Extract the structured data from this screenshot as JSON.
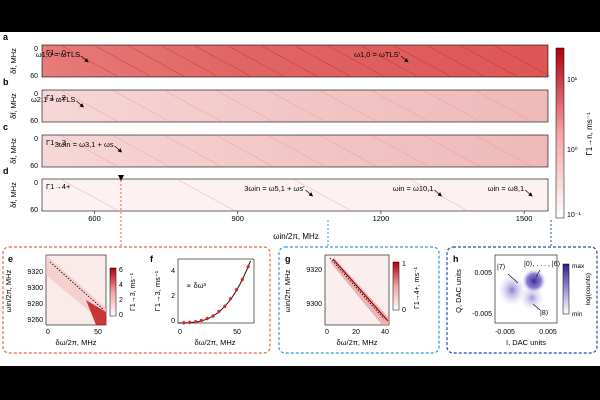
{
  "colors": {
    "heat_low": "#ffffff",
    "heat_high": "#b0000f",
    "accent_red": "#d62728",
    "box_orange": "#e8683a",
    "box_blue": "#2a9fd6",
    "box_navy": "#1f4bb0",
    "iq_dark": "#3b2a9a",
    "iq_light": "#d8d2f0"
  },
  "rows": [
    {
      "panel": "a",
      "gamma": "Γ1→0",
      "ylabel": "δf, MHz",
      "ytick_top": "0",
      "ytick_bottom": "60",
      "annotations": [
        {
          "label": "ω1,0 = ωTLS",
          "x_mhz": 570
        },
        {
          "label": "ω1,0 = ωTLS'",
          "x_mhz": 1240
        }
      ]
    },
    {
      "panel": "b",
      "gamma": "Γ1→2",
      "ylabel": "δf, MHz",
      "ytick_top": "0",
      "ytick_bottom": "60",
      "annotations": [
        {
          "label": "ω2,1 = ωTLS",
          "x_mhz": 560
        }
      ]
    },
    {
      "panel": "c",
      "gamma": "Γ1→3",
      "ylabel": "δf, MHz",
      "ytick_top": "0",
      "ytick_bottom": "60",
      "annotations": [
        {
          "label": "3ωin = ω3,1 + ωs",
          "x_mhz": 640
        }
      ]
    },
    {
      "panel": "d",
      "gamma": "Γ1→4+",
      "ylabel": "δf, MHz",
      "ytick_top": "0",
      "ytick_bottom": "60",
      "annotations": [
        {
          "label": "3ωin = ω5,1 + ωs'",
          "x_mhz": 1040
        },
        {
          "label": "ωin = ω10,1",
          "x_mhz": 1310
        },
        {
          "label": "ωin = ω8,1",
          "x_mhz": 1500
        }
      ]
    }
  ],
  "top_x_axis": {
    "label": "ωin/2π, MHz",
    "ticks": [
      "600",
      "900",
      "1200",
      "1500"
    ],
    "tick_values": [
      600,
      900,
      1200,
      1500
    ],
    "range": [
      490,
      1550
    ]
  },
  "top_colorbar": {
    "label": "Γ1→n, ms⁻¹",
    "ticks": [
      "10¹",
      "10⁰",
      "10⁻¹"
    ],
    "log_range": [
      -1,
      1.5
    ]
  },
  "panel_e": {
    "letter": "e",
    "ylabel": "ωin/2π, MHz",
    "yticks": [
      "9320",
      "9300",
      "9280",
      "9260"
    ],
    "xlabel": "δω/2π, MHz",
    "xticks": [
      "0",
      "50"
    ],
    "colorbar_label": "Γ1→3, ms⁻¹",
    "colorbar_ticks": [
      "6",
      "4",
      "2",
      "0"
    ]
  },
  "panel_f": {
    "letter": "f",
    "ylabel": "Γ1→3, ms⁻¹",
    "yticks": [
      "4",
      "2",
      "0"
    ],
    "xlabel": "δω/2π, MHz",
    "xticks": [
      "0",
      "50"
    ],
    "fit_label": "∝ δω³"
  },
  "panel_g": {
    "letter": "g",
    "ylabel": "ωin/2π, MHz",
    "yticks": [
      "9320",
      "9300"
    ],
    "xlabel": "δω/2π, MHz",
    "xticks": [
      "0",
      "20",
      "40"
    ],
    "colorbar_label": "Γ1→4+, ms⁻¹",
    "colorbar_ticks": [
      "1",
      "0"
    ]
  },
  "panel_h": {
    "letter": "h",
    "ylabel": "Q, DAC units",
    "yticks": [
      "0.005",
      "-0.005"
    ],
    "xlabel": "I, DAC units",
    "xticks": [
      "-0.005",
      "0.005"
    ],
    "state_labels": [
      "|7⟩",
      "|0⟩, . . . , |6⟩",
      "|8⟩"
    ],
    "colorbar_top": "max",
    "colorbar_mid": "log(counts)",
    "colorbar_bottom": "min"
  },
  "chart_data": [
    {
      "type": "scatter",
      "title": "",
      "xlabel": "δω/2π, MHz",
      "ylabel": "Γ1→3, ms⁻¹",
      "xlim": [
        0,
        65
      ],
      "ylim": [
        0,
        5
      ],
      "fit": "∝ δω³",
      "x": [
        5,
        10,
        15,
        20,
        25,
        30,
        35,
        40,
        45,
        50,
        55,
        60
      ],
      "y": [
        0.02,
        0.05,
        0.1,
        0.2,
        0.35,
        0.55,
        0.9,
        1.3,
        1.9,
        2.6,
        3.4,
        4.4
      ]
    }
  ]
}
